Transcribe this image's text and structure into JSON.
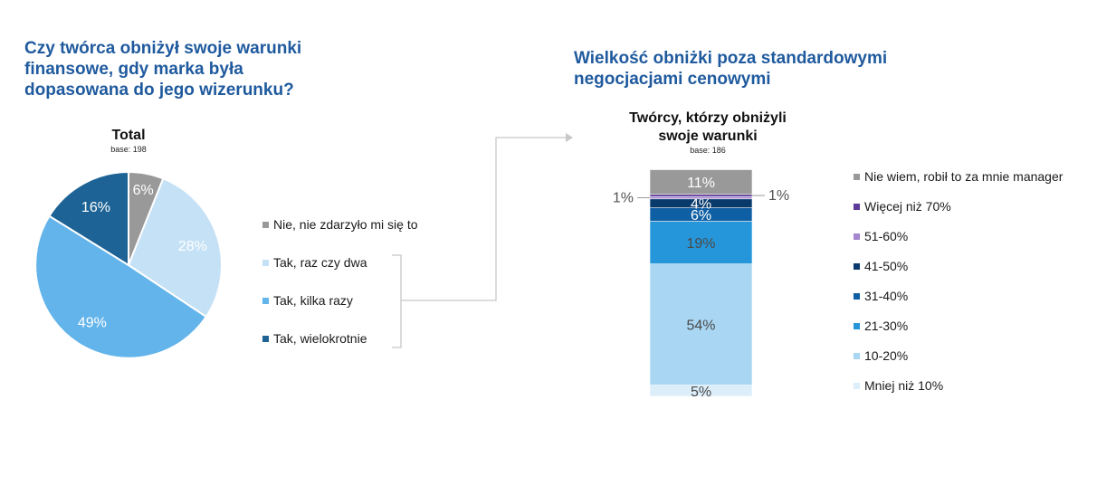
{
  "left_heading": "Czy twórca obniżył swoje warunki finansowe, gdy marka była dopasowana do jego wizerunku?",
  "right_heading": "Wielkość obniżki poza standardowymi negocjacjami cenowymi",
  "colors": {
    "heading": "#1f5a9e",
    "connector": "#c8c8c8"
  },
  "chart_data": [
    {
      "type": "pie",
      "title": "Total",
      "subtitle": "base: 198",
      "slices": [
        {
          "label": "Nie, nie zdarzyło mi się to",
          "value": 6,
          "display": "6%",
          "color": "#999999"
        },
        {
          "label": "Tak, raz czy dwa",
          "value": 28,
          "display": "28%",
          "color": "#c5e1f6"
        },
        {
          "label": "Tak, kilka razy",
          "value": 49,
          "display": "49%",
          "color": "#62b4ea"
        },
        {
          "label": "Tak, wielokrotnie",
          "value": 16,
          "display": "16%",
          "color": "#1d6395"
        }
      ]
    },
    {
      "type": "bar",
      "stacked": true,
      "title": "Twórcy, którzy obniżyli swoje warunki",
      "subtitle": "base: 186",
      "ylim": [
        0,
        100
      ],
      "series": [
        {
          "name": "Mniej niż 10%",
          "value": 5,
          "display": "5%",
          "color": "#dceef9"
        },
        {
          "name": "10-20%",
          "value": 54,
          "display": "54%",
          "color": "#a9d6f3"
        },
        {
          "name": "21-30%",
          "value": 19,
          "display": "19%",
          "color": "#2596d9"
        },
        {
          "name": "31-40%",
          "value": 6,
          "display": "6%",
          "color": "#0f5fa5"
        },
        {
          "name": "41-50%",
          "value": 4,
          "display": "4%",
          "color": "#093a6c"
        },
        {
          "name": "51-60%",
          "value": 1,
          "display": "1%",
          "color": "#a487cf"
        },
        {
          "name": "Więcej niż 70%",
          "value": 1,
          "display": "1%",
          "color": "#5e3a99"
        },
        {
          "name": "Nie wiem, robił to za mnie manager",
          "value": 11,
          "display": "11%",
          "color": "#999999"
        }
      ]
    }
  ]
}
